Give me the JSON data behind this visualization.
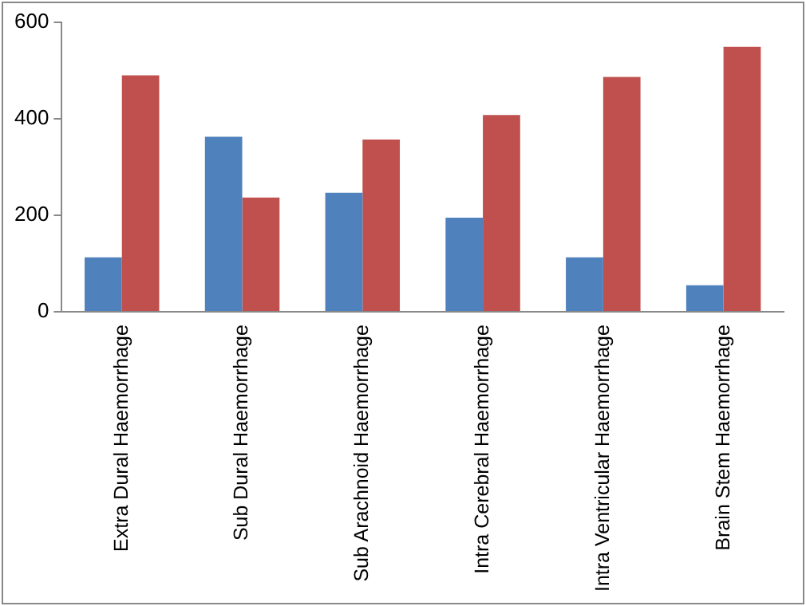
{
  "chart_data": {
    "type": "bar",
    "categories": [
      "Extra Dural Haemorrhage",
      "Sub Dural Haemorrhage",
      "Sub Arachnoid Haemorrhage",
      "Intra Cerebral Haemorrhage",
      "Intra Ventricular Haemorrhage",
      "Brain Stem Haemorrhage"
    ],
    "series": [
      {
        "color": "#4f81bd",
        "values": [
          113,
          363,
          247,
          195,
          113,
          55
        ]
      },
      {
        "color": "#c0504d",
        "values": [
          490,
          237,
          357,
          408,
          487,
          549
        ]
      }
    ],
    "ylim": [
      0,
      600
    ],
    "yticks": [
      0,
      200,
      400,
      600
    ],
    "grid": false,
    "legend": false
  }
}
